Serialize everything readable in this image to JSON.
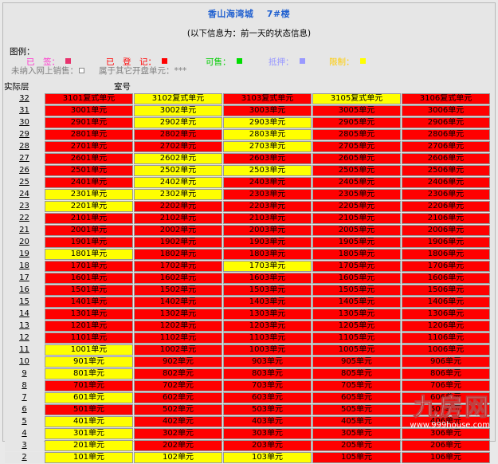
{
  "title": {
    "project": "香山海湾城",
    "building": "7#楼"
  },
  "subtitle": "(以下信息为：前一天的状态信息)",
  "legend": {
    "label": "图例：",
    "items": [
      {
        "label": "已　签：",
        "color": "#ff00cc",
        "swatch": "#e8336d"
      },
      {
        "label": "已　登　记：",
        "color": "#ff0000",
        "swatch": "#ff0000"
      },
      {
        "label": "可售：",
        "color": "#00cc00",
        "swatch": "#00dd00"
      },
      {
        "label": "抵押：",
        "color": "#9999ff",
        "swatch": "#9999ff"
      },
      {
        "label": "限制：",
        "color": "#ffcc00",
        "swatch": "#ffff00"
      }
    ],
    "not_online": "未纳入网上销售：",
    "other": "属于其它开盘单元：***"
  },
  "headers": {
    "floor": "实际层",
    "room": "室号"
  },
  "rows": [
    {
      "floor": "32",
      "units": [
        [
          "3101复式单元",
          "R"
        ],
        [
          "3102复式单元",
          "Y"
        ],
        [
          "3103复式单元",
          "R"
        ],
        [
          "3105复式单元",
          "Y"
        ],
        [
          "3106复式单元",
          "R"
        ]
      ]
    },
    {
      "floor": "31",
      "units": [
        [
          "3001单元",
          "R"
        ],
        [
          "3002单元",
          "Y"
        ],
        [
          "3003单元",
          "R"
        ],
        [
          "3005单元",
          "R"
        ],
        [
          "3006单元",
          "R"
        ]
      ]
    },
    {
      "floor": "30",
      "units": [
        [
          "2901单元",
          "R"
        ],
        [
          "2902单元",
          "Y"
        ],
        [
          "2903单元",
          "Y"
        ],
        [
          "2905单元",
          "R"
        ],
        [
          "2906单元",
          "R"
        ]
      ]
    },
    {
      "floor": "29",
      "units": [
        [
          "2801单元",
          "R"
        ],
        [
          "2802单元",
          "R"
        ],
        [
          "2803单元",
          "Y"
        ],
        [
          "2805单元",
          "R"
        ],
        [
          "2806单元",
          "R"
        ]
      ]
    },
    {
      "floor": "28",
      "units": [
        [
          "2701单元",
          "R"
        ],
        [
          "2702单元",
          "R"
        ],
        [
          "2703单元",
          "Y"
        ],
        [
          "2705单元",
          "R"
        ],
        [
          "2706单元",
          "R"
        ]
      ]
    },
    {
      "floor": "27",
      "units": [
        [
          "2601单元",
          "R"
        ],
        [
          "2602单元",
          "Y"
        ],
        [
          "2603单元",
          "R"
        ],
        [
          "2605单元",
          "R"
        ],
        [
          "2606单元",
          "R"
        ]
      ]
    },
    {
      "floor": "26",
      "units": [
        [
          "2501单元",
          "R"
        ],
        [
          "2502单元",
          "Y"
        ],
        [
          "2503单元",
          "Y"
        ],
        [
          "2505单元",
          "R"
        ],
        [
          "2506单元",
          "R"
        ]
      ]
    },
    {
      "floor": "25",
      "units": [
        [
          "2401单元",
          "R"
        ],
        [
          "2402单元",
          "Y"
        ],
        [
          "2403单元",
          "R"
        ],
        [
          "2405单元",
          "R"
        ],
        [
          "2406单元",
          "R"
        ]
      ]
    },
    {
      "floor": "24",
      "units": [
        [
          "2301单元",
          "Y"
        ],
        [
          "2302单元",
          "Y"
        ],
        [
          "2303单元",
          "R"
        ],
        [
          "2305单元",
          "R"
        ],
        [
          "2306单元",
          "R"
        ]
      ]
    },
    {
      "floor": "23",
      "units": [
        [
          "2201单元",
          "Y"
        ],
        [
          "2202单元",
          "R"
        ],
        [
          "2203单元",
          "R"
        ],
        [
          "2205单元",
          "R"
        ],
        [
          "2206单元",
          "R"
        ]
      ]
    },
    {
      "floor": "22",
      "units": [
        [
          "2101单元",
          "R"
        ],
        [
          "2102单元",
          "R"
        ],
        [
          "2103单元",
          "R"
        ],
        [
          "2105单元",
          "R"
        ],
        [
          "2106单元",
          "R"
        ]
      ]
    },
    {
      "floor": "21",
      "units": [
        [
          "2001单元",
          "R"
        ],
        [
          "2002单元",
          "R"
        ],
        [
          "2003单元",
          "R"
        ],
        [
          "2005单元",
          "R"
        ],
        [
          "2006单元",
          "R"
        ]
      ]
    },
    {
      "floor": "20",
      "units": [
        [
          "1901单元",
          "R"
        ],
        [
          "1902单元",
          "R"
        ],
        [
          "1903单元",
          "R"
        ],
        [
          "1905单元",
          "R"
        ],
        [
          "1906单元",
          "R"
        ]
      ]
    },
    {
      "floor": "19",
      "units": [
        [
          "1801单元",
          "Y"
        ],
        [
          "1802单元",
          "R"
        ],
        [
          "1803单元",
          "R"
        ],
        [
          "1805单元",
          "R"
        ],
        [
          "1806单元",
          "R"
        ]
      ]
    },
    {
      "floor": "18",
      "units": [
        [
          "1701单元",
          "R"
        ],
        [
          "1702单元",
          "R"
        ],
        [
          "1703单元",
          "Y"
        ],
        [
          "1705单元",
          "R"
        ],
        [
          "1706单元",
          "R"
        ]
      ]
    },
    {
      "floor": "17",
      "units": [
        [
          "1601单元",
          "R"
        ],
        [
          "1602单元",
          "R"
        ],
        [
          "1603单元",
          "R"
        ],
        [
          "1605单元",
          "R"
        ],
        [
          "1606单元",
          "R"
        ]
      ]
    },
    {
      "floor": "16",
      "units": [
        [
          "1501单元",
          "R"
        ],
        [
          "1502单元",
          "R"
        ],
        [
          "1503单元",
          "R"
        ],
        [
          "1505单元",
          "R"
        ],
        [
          "1506单元",
          "R"
        ]
      ]
    },
    {
      "floor": "15",
      "units": [
        [
          "1401单元",
          "R"
        ],
        [
          "1402单元",
          "R"
        ],
        [
          "1403单元",
          "R"
        ],
        [
          "1405单元",
          "R"
        ],
        [
          "1406单元",
          "R"
        ]
      ]
    },
    {
      "floor": "14",
      "units": [
        [
          "1301单元",
          "R"
        ],
        [
          "1302单元",
          "R"
        ],
        [
          "1303单元",
          "R"
        ],
        [
          "1305单元",
          "R"
        ],
        [
          "1306单元",
          "R"
        ]
      ]
    },
    {
      "floor": "13",
      "units": [
        [
          "1201单元",
          "R"
        ],
        [
          "1202单元",
          "R"
        ],
        [
          "1203单元",
          "R"
        ],
        [
          "1205单元",
          "R"
        ],
        [
          "1206单元",
          "R"
        ]
      ]
    },
    {
      "floor": "12",
      "units": [
        [
          "1101单元",
          "R"
        ],
        [
          "1102单元",
          "R"
        ],
        [
          "1103单元",
          "R"
        ],
        [
          "1105单元",
          "R"
        ],
        [
          "1106单元",
          "R"
        ]
      ]
    },
    {
      "floor": "11",
      "units": [
        [
          "1001单元",
          "Y"
        ],
        [
          "1002单元",
          "R"
        ],
        [
          "1003单元",
          "R"
        ],
        [
          "1005单元",
          "R"
        ],
        [
          "1006单元",
          "R"
        ]
      ]
    },
    {
      "floor": "10",
      "units": [
        [
          "901单元",
          "Y"
        ],
        [
          "902单元",
          "R"
        ],
        [
          "903单元",
          "R"
        ],
        [
          "905单元",
          "R"
        ],
        [
          "906单元",
          "R"
        ]
      ]
    },
    {
      "floor": "9",
      "units": [
        [
          "801单元",
          "Y"
        ],
        [
          "802单元",
          "R"
        ],
        [
          "803单元",
          "R"
        ],
        [
          "805单元",
          "R"
        ],
        [
          "806单元",
          "R"
        ]
      ]
    },
    {
      "floor": "8",
      "units": [
        [
          "701单元",
          "R"
        ],
        [
          "702单元",
          "R"
        ],
        [
          "703单元",
          "R"
        ],
        [
          "705单元",
          "R"
        ],
        [
          "706单元",
          "R"
        ]
      ]
    },
    {
      "floor": "7",
      "units": [
        [
          "601单元",
          "Y"
        ],
        [
          "602单元",
          "R"
        ],
        [
          "603单元",
          "R"
        ],
        [
          "605单元",
          "R"
        ],
        [
          "606单元",
          "R"
        ]
      ]
    },
    {
      "floor": "6",
      "units": [
        [
          "501单元",
          "R"
        ],
        [
          "502单元",
          "R"
        ],
        [
          "503单元",
          "R"
        ],
        [
          "505单元",
          "R"
        ],
        [
          "506单元",
          "R"
        ]
      ]
    },
    {
      "floor": "5",
      "units": [
        [
          "401单元",
          "Y"
        ],
        [
          "402单元",
          "R"
        ],
        [
          "403单元",
          "R"
        ],
        [
          "405单元",
          "R"
        ],
        [
          "406单元",
          "R"
        ]
      ]
    },
    {
      "floor": "4",
      "units": [
        [
          "301单元",
          "Y"
        ],
        [
          "302单元",
          "R"
        ],
        [
          "303单元",
          "R"
        ],
        [
          "305单元",
          "R"
        ],
        [
          "306单元",
          "R"
        ]
      ]
    },
    {
      "floor": "3",
      "units": [
        [
          "201单元",
          "Y"
        ],
        [
          "202单元",
          "R"
        ],
        [
          "203单元",
          "R"
        ],
        [
          "205单元",
          "R"
        ],
        [
          "206单元",
          "R"
        ]
      ]
    },
    {
      "floor": "2",
      "units": [
        [
          "101单元",
          "Y"
        ],
        [
          "102单元",
          "Y"
        ],
        [
          "103单元",
          "Y"
        ],
        [
          "105单元",
          "R"
        ],
        [
          "106单元",
          "R"
        ]
      ]
    }
  ],
  "status_colors": {
    "R": "#ff0000",
    "Y": "#ffff00"
  },
  "watermark": {
    "logo": "九房网",
    "url": "www.999house.com"
  }
}
